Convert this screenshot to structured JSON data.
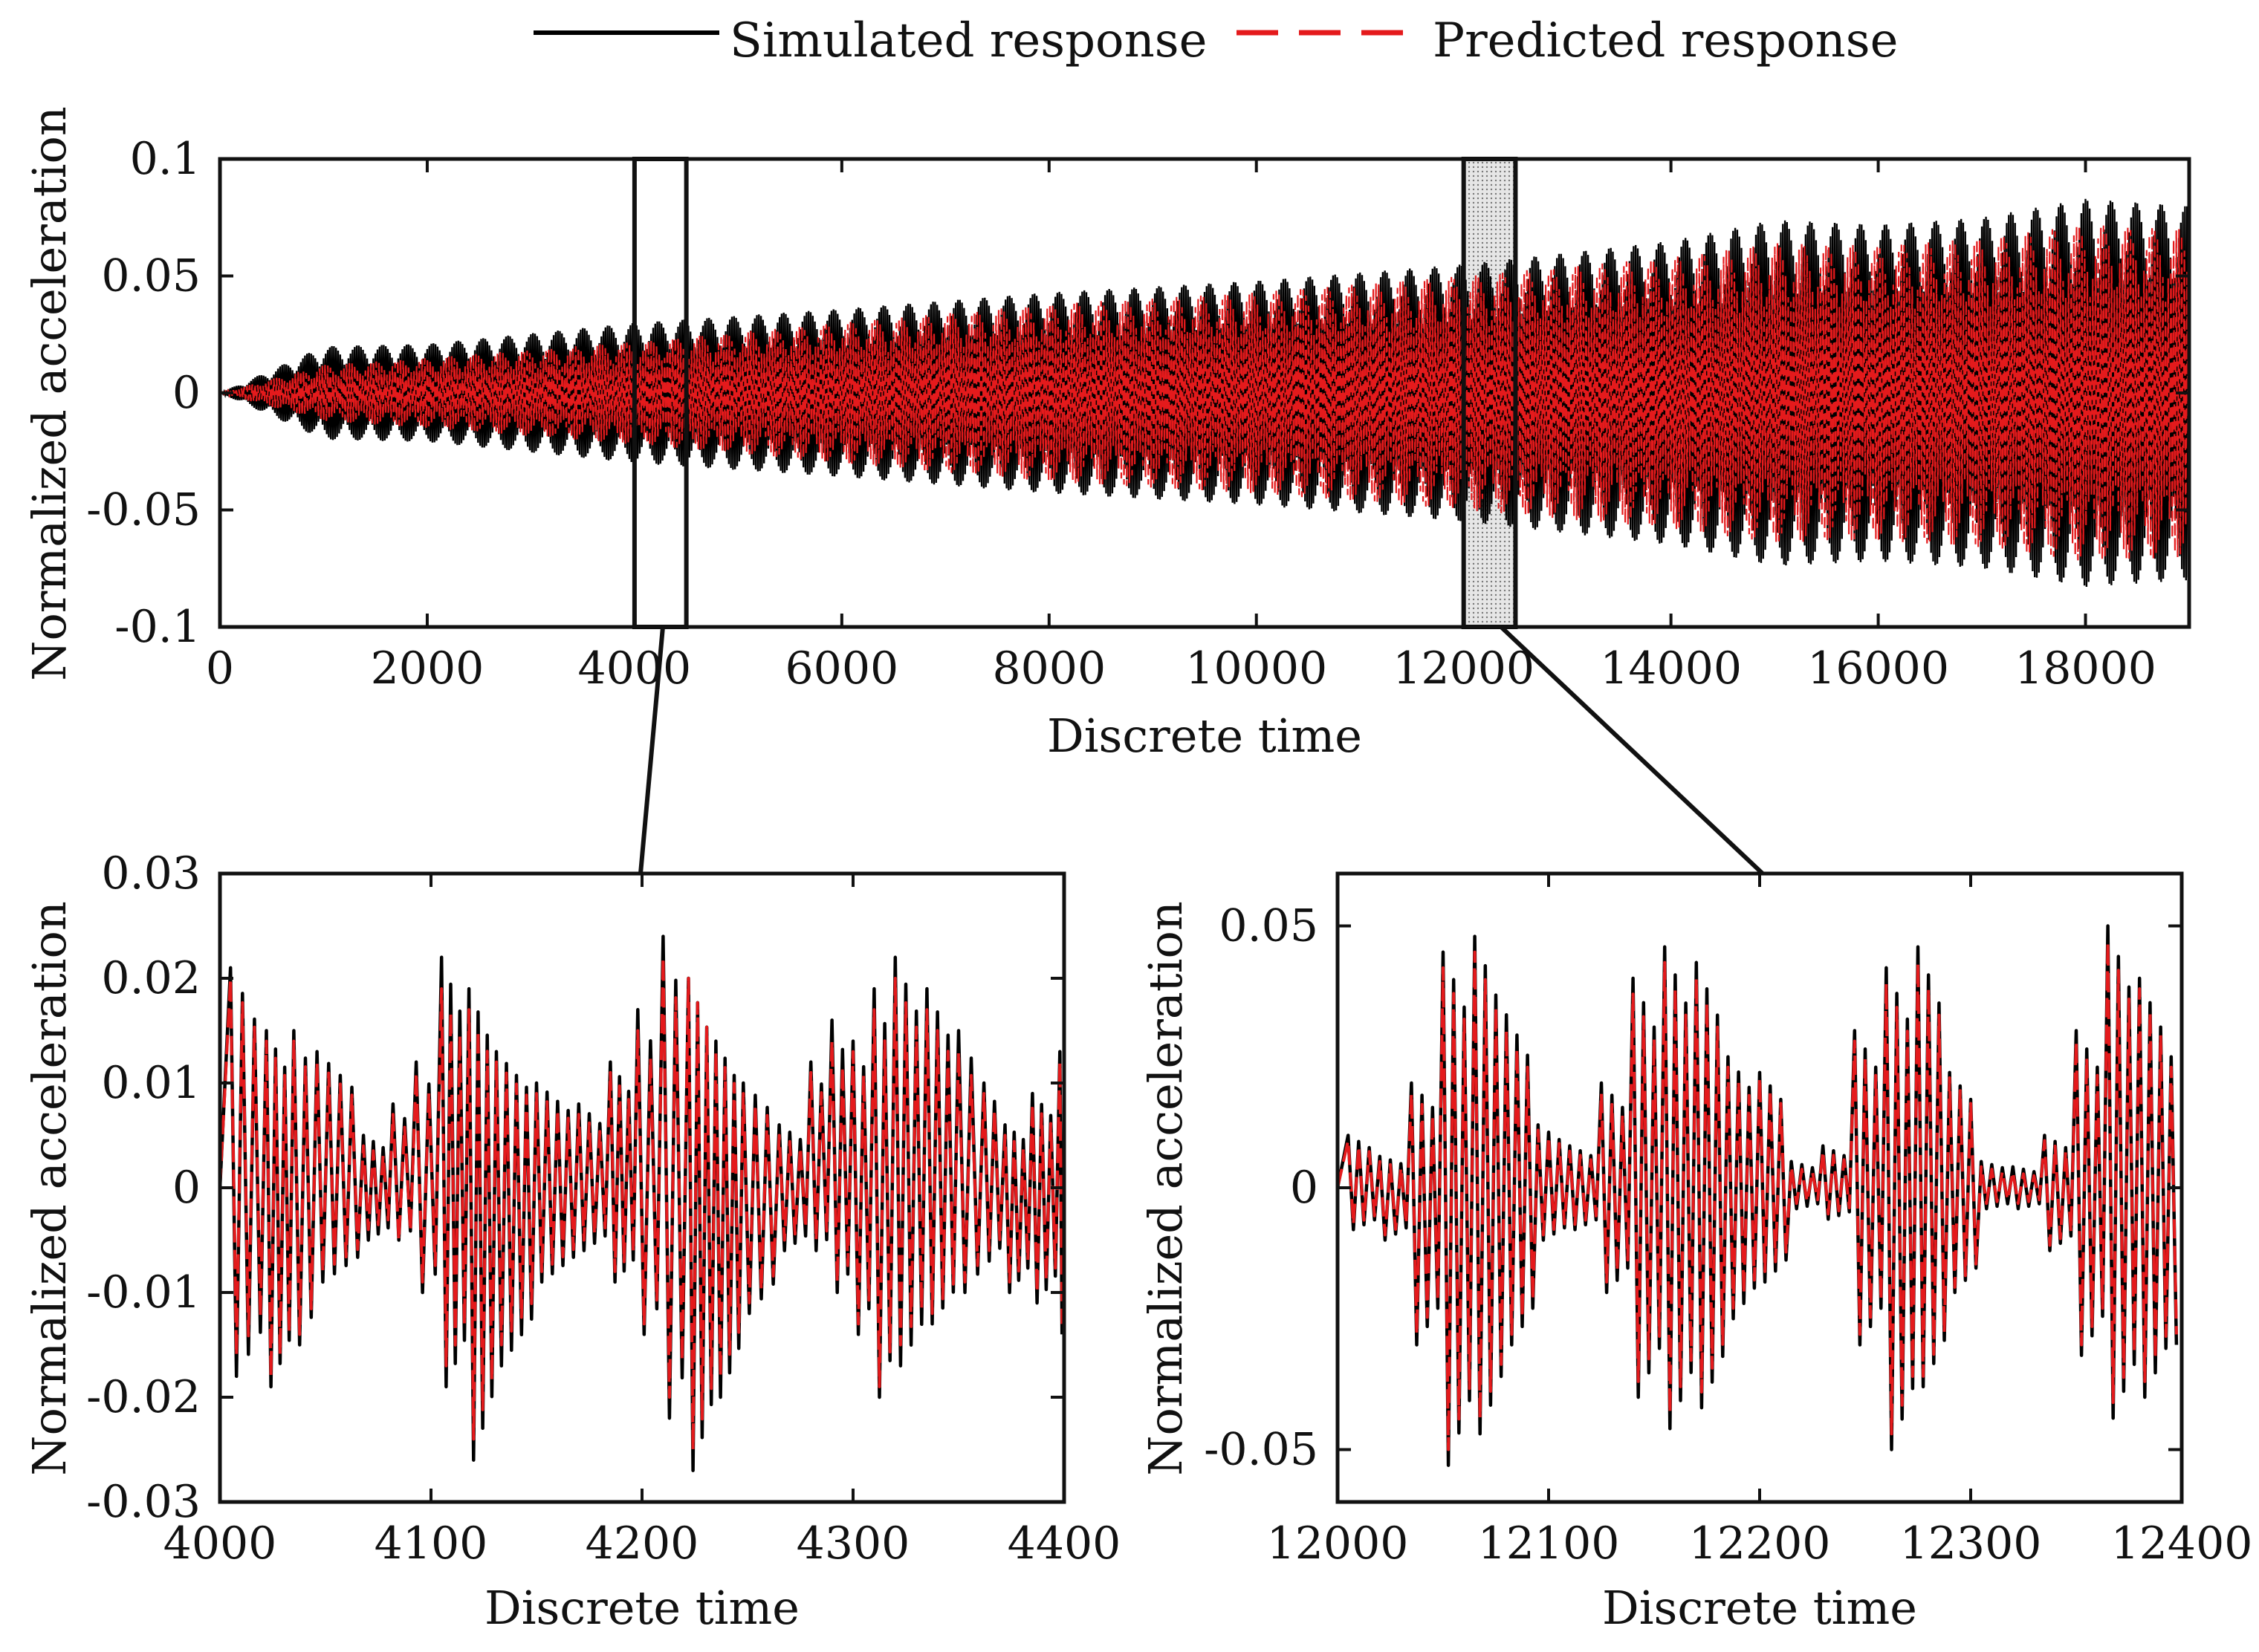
{
  "legend": {
    "simulated_label": "Simulated response",
    "predicted_label": "Predicted response"
  },
  "colors": {
    "simulated": "#000000",
    "predicted": "#e41a1c",
    "frame": "#111111",
    "highlight_fill": "#d8d8d8"
  },
  "chart_data": [
    {
      "id": "overview",
      "type": "line",
      "xlabel": "Discrete time",
      "ylabel": "Normalized acceleration",
      "xlim": [
        0,
        19000
      ],
      "ylim": [
        -0.1,
        0.1
      ],
      "xticks": [
        0,
        2000,
        4000,
        6000,
        8000,
        10000,
        12000,
        14000,
        16000,
        18000
      ],
      "xtick_labels": [
        "0",
        "2000",
        "4000",
        "6000",
        "8000",
        "10000",
        "12000",
        "14000",
        "16000",
        "18000"
      ],
      "yticks": [
        0.1,
        0.05,
        0,
        -0.05,
        -0.1
      ],
      "ytick_labels": [
        "0.1",
        "0.05",
        "0",
        "-0.05",
        "-0.1"
      ],
      "zoom_windows": [
        {
          "x_range": [
            4000,
            4500
          ],
          "shaded": false
        },
        {
          "x_range": [
            12000,
            12500
          ],
          "shaded": true
        }
      ],
      "series": [
        {
          "name": "Simulated response",
          "envelope_x": [
            0,
            1000,
            2000,
            4000,
            6000,
            8000,
            10000,
            12000,
            14000,
            15000,
            16000,
            17000,
            18000,
            19000
          ],
          "envelope_amplitude": [
            0.0,
            0.02,
            0.021,
            0.03,
            0.036,
            0.043,
            0.048,
            0.055,
            0.065,
            0.074,
            0.072,
            0.075,
            0.083,
            0.08
          ]
        },
        {
          "name": "Predicted response",
          "envelope_x": [
            0,
            1000,
            2000,
            4000,
            6000,
            8000,
            10000,
            12000,
            14000,
            15000,
            16000,
            17000,
            18000,
            19000
          ],
          "envelope_amplitude": [
            0.0,
            0.012,
            0.015,
            0.022,
            0.03,
            0.038,
            0.043,
            0.05,
            0.058,
            0.064,
            0.063,
            0.066,
            0.072,
            0.07
          ]
        }
      ]
    },
    {
      "id": "zoom-1",
      "type": "line",
      "xlabel": "Discrete time",
      "ylabel": "Normalized acceleration",
      "xlim": [
        4000,
        4400
      ],
      "ylim": [
        -0.03,
        0.03
      ],
      "xticks": [
        4000,
        4100,
        4200,
        4300,
        4400
      ],
      "xtick_labels": [
        "4000",
        "4100",
        "4200",
        "4300",
        "4400"
      ],
      "yticks": [
        0.03,
        0.02,
        0.01,
        0,
        -0.01,
        -0.02,
        -0.03
      ],
      "ytick_labels": [
        "0.03",
        "0.02",
        "0.01",
        "0",
        "-0.01",
        "-0.02",
        "-0.03"
      ],
      "series": [
        {
          "name": "Simulated response",
          "peak_x": [
            4005,
            4022,
            4035,
            4046,
            4068,
            4082,
            4093,
            4105,
            4118,
            4131,
            4150,
            4170,
            4185,
            4198,
            4210,
            4222,
            4235,
            4248,
            4265,
            4280,
            4290,
            4300,
            4310,
            4320,
            4335,
            4350,
            4362,
            4372,
            4385,
            4398
          ],
          "peak_y": [
            0.021,
            0.015,
            0.015,
            0.013,
            0.005,
            0.008,
            0.012,
            0.022,
            0.019,
            0.013,
            0.01,
            0.008,
            0.012,
            0.017,
            0.024,
            0.02,
            0.014,
            0.01,
            0.006,
            0.012,
            0.016,
            0.014,
            0.019,
            0.022,
            0.019,
            0.015,
            0.01,
            0.006,
            0.009,
            0.013
          ],
          "trough_y": [
            -0.018,
            -0.019,
            -0.015,
            -0.009,
            -0.005,
            -0.005,
            -0.01,
            -0.019,
            -0.026,
            -0.017,
            -0.009,
            -0.006,
            -0.009,
            -0.014,
            -0.022,
            -0.027,
            -0.02,
            -0.012,
            -0.006,
            -0.006,
            -0.01,
            -0.014,
            -0.02,
            -0.017,
            -0.013,
            -0.01,
            -0.007,
            -0.01,
            -0.011,
            -0.014
          ]
        },
        {
          "name": "Predicted response",
          "peak_x": [
            4005,
            4022,
            4035,
            4046,
            4068,
            4082,
            4093,
            4105,
            4118,
            4131,
            4150,
            4170,
            4185,
            4198,
            4210,
            4222,
            4235,
            4248,
            4265,
            4280,
            4290,
            4300,
            4310,
            4320,
            4335,
            4350,
            4362,
            4372,
            4385,
            4398
          ],
          "peak_y": [
            0.02,
            0.014,
            0.014,
            0.012,
            0.004,
            0.007,
            0.011,
            0.019,
            0.017,
            0.012,
            0.009,
            0.007,
            0.011,
            0.015,
            0.022,
            0.02,
            0.013,
            0.009,
            0.005,
            0.011,
            0.014,
            0.013,
            0.017,
            0.02,
            0.017,
            0.013,
            0.009,
            0.005,
            0.008,
            0.012
          ],
          "trough_y": [
            -0.016,
            -0.018,
            -0.014,
            -0.008,
            -0.004,
            -0.005,
            -0.009,
            -0.017,
            -0.024,
            -0.015,
            -0.008,
            -0.005,
            -0.008,
            -0.013,
            -0.02,
            -0.025,
            -0.018,
            -0.011,
            -0.005,
            -0.005,
            -0.009,
            -0.013,
            -0.019,
            -0.015,
            -0.012,
            -0.009,
            -0.006,
            -0.009,
            -0.01,
            -0.013
          ]
        }
      ]
    },
    {
      "id": "zoom-2",
      "type": "line",
      "xlabel": "Discrete time",
      "ylabel": "Normalized acceleration",
      "xlim": [
        12000,
        12400
      ],
      "ylim": [
        -0.06,
        0.06
      ],
      "xticks": [
        12000,
        12100,
        12200,
        12300,
        12400
      ],
      "xtick_labels": [
        "12000",
        "12100",
        "12200",
        "12300",
        "12400"
      ],
      "yticks": [
        0.05,
        0,
        -0.05
      ],
      "ytick_labels": [
        "0.05",
        "0",
        "-0.05"
      ],
      "series": [
        {
          "name": "Simulated response",
          "peak_x": [
            12005,
            12020,
            12035,
            12050,
            12065,
            12080,
            12095,
            12110,
            12125,
            12140,
            12155,
            12170,
            12185,
            12200,
            12215,
            12230,
            12245,
            12260,
            12275,
            12290,
            12305,
            12320,
            12335,
            12350,
            12365,
            12380,
            12395
          ],
          "peak_y": [
            0.01,
            0.006,
            0.02,
            0.045,
            0.048,
            0.033,
            0.012,
            0.008,
            0.02,
            0.04,
            0.046,
            0.043,
            0.025,
            0.022,
            0.005,
            0.008,
            0.03,
            0.042,
            0.046,
            0.022,
            0.005,
            0.004,
            0.01,
            0.03,
            0.05,
            0.04,
            0.025
          ],
          "trough_y": [
            -0.008,
            -0.01,
            -0.03,
            -0.053,
            -0.047,
            -0.03,
            -0.01,
            -0.008,
            -0.02,
            -0.04,
            -0.046,
            -0.042,
            -0.025,
            -0.018,
            -0.004,
            -0.006,
            -0.03,
            -0.05,
            -0.038,
            -0.02,
            -0.004,
            -0.004,
            -0.012,
            -0.032,
            -0.044,
            -0.04,
            -0.03
          ]
        },
        {
          "name": "Predicted response",
          "peak_x": [
            12005,
            12020,
            12035,
            12050,
            12065,
            12080,
            12095,
            12110,
            12125,
            12140,
            12155,
            12170,
            12185,
            12200,
            12215,
            12230,
            12245,
            12260,
            12275,
            12290,
            12305,
            12320,
            12335,
            12350,
            12365,
            12380,
            12395
          ],
          "peak_y": [
            0.009,
            0.005,
            0.018,
            0.042,
            0.045,
            0.03,
            0.011,
            0.007,
            0.018,
            0.037,
            0.043,
            0.04,
            0.023,
            0.021,
            0.004,
            0.007,
            0.028,
            0.039,
            0.043,
            0.021,
            0.004,
            0.003,
            0.009,
            0.028,
            0.047,
            0.038,
            0.023
          ],
          "trough_y": [
            -0.007,
            -0.009,
            -0.028,
            -0.05,
            -0.044,
            -0.028,
            -0.009,
            -0.007,
            -0.018,
            -0.037,
            -0.043,
            -0.039,
            -0.023,
            -0.016,
            -0.003,
            -0.005,
            -0.028,
            -0.047,
            -0.036,
            -0.019,
            -0.003,
            -0.003,
            -0.011,
            -0.03,
            -0.041,
            -0.037,
            -0.028
          ]
        }
      ]
    }
  ]
}
